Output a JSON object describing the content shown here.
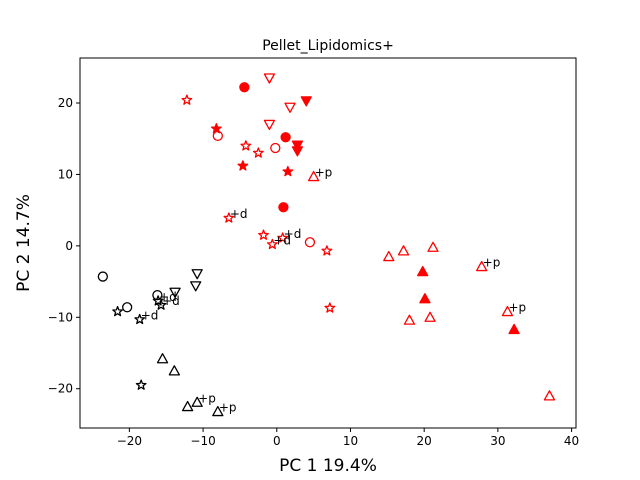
{
  "chart_data": {
    "type": "scatter",
    "title": "Pellet_Lipidomics+",
    "xlabel": "PC 1 19.4%",
    "ylabel": "PC 2 14.7%",
    "xlim": [
      -26.7,
      40.6
    ],
    "ylim": [
      -25.5,
      26.3
    ],
    "xticks": [
      -20,
      -10,
      0,
      10,
      20,
      30,
      40
    ],
    "yticks": [
      -20,
      -10,
      0,
      10,
      20
    ],
    "grid": false,
    "colors": {
      "red": "#ff0000",
      "black": "#000000"
    },
    "points": [
      {
        "x": -4.4,
        "y": 22.2,
        "marker": "circle",
        "fill": true,
        "color": "red"
      },
      {
        "x": 1.2,
        "y": 15.2,
        "marker": "circle",
        "fill": true,
        "color": "red"
      },
      {
        "x": 0.9,
        "y": 5.4,
        "marker": "circle",
        "fill": true,
        "color": "red"
      },
      {
        "x": -8.0,
        "y": 15.4,
        "marker": "circle",
        "fill": false,
        "color": "red"
      },
      {
        "x": -0.2,
        "y": 13.7,
        "marker": "circle",
        "fill": false,
        "color": "red"
      },
      {
        "x": 4.5,
        "y": 0.5,
        "marker": "circle",
        "fill": false,
        "color": "red"
      },
      {
        "x": -1.0,
        "y": 23.5,
        "marker": "triangle-down",
        "fill": false,
        "color": "red"
      },
      {
        "x": 1.8,
        "y": 19.4,
        "marker": "triangle-down",
        "fill": false,
        "color": "red"
      },
      {
        "x": -1.0,
        "y": 17.0,
        "marker": "triangle-down",
        "fill": false,
        "color": "red"
      },
      {
        "x": 4.0,
        "y": 20.3,
        "marker": "triangle-down",
        "fill": true,
        "color": "red"
      },
      {
        "x": 2.8,
        "y": 14.1,
        "marker": "triangle-down",
        "fill": true,
        "color": "red"
      },
      {
        "x": 2.8,
        "y": 13.3,
        "marker": "triangle-down",
        "fill": true,
        "color": "red"
      },
      {
        "x": -12.2,
        "y": 20.4,
        "marker": "star",
        "fill": false,
        "color": "red"
      },
      {
        "x": -8.2,
        "y": 16.4,
        "marker": "star",
        "fill": true,
        "color": "red"
      },
      {
        "x": -4.2,
        "y": 14.0,
        "marker": "star",
        "fill": false,
        "color": "red"
      },
      {
        "x": -2.5,
        "y": 13.0,
        "marker": "star",
        "fill": false,
        "color": "red"
      },
      {
        "x": -4.6,
        "y": 11.2,
        "marker": "star",
        "fill": true,
        "color": "red"
      },
      {
        "x": 1.5,
        "y": 10.4,
        "marker": "star",
        "fill": true,
        "color": "red"
      },
      {
        "x": -6.5,
        "y": 3.9,
        "marker": "star",
        "fill": false,
        "color": "red",
        "label": "+d"
      },
      {
        "x": -1.8,
        "y": 1.5,
        "marker": "star",
        "fill": false,
        "color": "red"
      },
      {
        "x": 0.8,
        "y": 1.1,
        "marker": "star",
        "fill": false,
        "color": "red",
        "label": "+d"
      },
      {
        "x": -0.6,
        "y": 0.2,
        "marker": "star",
        "fill": false,
        "color": "red",
        "label": "+d"
      },
      {
        "x": 6.8,
        "y": -0.7,
        "marker": "star",
        "fill": false,
        "color": "red"
      },
      {
        "x": 7.2,
        "y": -8.7,
        "marker": "star",
        "fill": false,
        "color": "red"
      },
      {
        "x": 5.0,
        "y": 9.7,
        "marker": "triangle-up",
        "fill": false,
        "color": "red",
        "label": "+p"
      },
      {
        "x": 15.2,
        "y": -1.5,
        "marker": "triangle-up",
        "fill": false,
        "color": "red"
      },
      {
        "x": 17.2,
        "y": -0.7,
        "marker": "triangle-up",
        "fill": false,
        "color": "red"
      },
      {
        "x": 21.2,
        "y": -0.2,
        "marker": "triangle-up",
        "fill": false,
        "color": "red"
      },
      {
        "x": 18.0,
        "y": -10.4,
        "marker": "triangle-up",
        "fill": false,
        "color": "red"
      },
      {
        "x": 20.8,
        "y": -10.0,
        "marker": "triangle-up",
        "fill": false,
        "color": "red"
      },
      {
        "x": 27.8,
        "y": -2.9,
        "marker": "triangle-up",
        "fill": false,
        "color": "red",
        "label": "+p"
      },
      {
        "x": 31.3,
        "y": -9.2,
        "marker": "triangle-up",
        "fill": false,
        "color": "red",
        "label": "+p"
      },
      {
        "x": 37.0,
        "y": -21.0,
        "marker": "triangle-up",
        "fill": false,
        "color": "red"
      },
      {
        "x": 19.8,
        "y": -3.6,
        "marker": "triangle-up",
        "fill": true,
        "color": "red"
      },
      {
        "x": 20.1,
        "y": -7.4,
        "marker": "triangle-up",
        "fill": true,
        "color": "red"
      },
      {
        "x": 32.2,
        "y": -11.7,
        "marker": "triangle-up",
        "fill": true,
        "color": "red"
      },
      {
        "x": -23.6,
        "y": -4.3,
        "marker": "circle",
        "fill": false,
        "color": "black"
      },
      {
        "x": -20.3,
        "y": -8.6,
        "marker": "circle",
        "fill": false,
        "color": "black"
      },
      {
        "x": -16.2,
        "y": -6.9,
        "marker": "circle",
        "fill": false,
        "color": "black"
      },
      {
        "x": -10.8,
        "y": -3.9,
        "marker": "triangle-down",
        "fill": false,
        "color": "black"
      },
      {
        "x": -11.0,
        "y": -5.6,
        "marker": "triangle-down",
        "fill": false,
        "color": "black"
      },
      {
        "x": -13.8,
        "y": -6.5,
        "marker": "triangle-down",
        "fill": false,
        "color": "black"
      },
      {
        "x": -21.6,
        "y": -9.2,
        "marker": "star",
        "fill": false,
        "color": "black"
      },
      {
        "x": -18.6,
        "y": -10.3,
        "marker": "star",
        "fill": false,
        "color": "black",
        "label": "+d"
      },
      {
        "x": -16.1,
        "y": -7.7,
        "marker": "star",
        "fill": false,
        "color": "black",
        "label": "+d"
      },
      {
        "x": -15.7,
        "y": -8.3,
        "marker": "star",
        "fill": false,
        "color": "black",
        "label": "+d"
      },
      {
        "x": -18.4,
        "y": -19.5,
        "marker": "star",
        "fill": false,
        "color": "black"
      },
      {
        "x": -15.5,
        "y": -15.8,
        "marker": "triangle-up",
        "fill": false,
        "color": "black"
      },
      {
        "x": -13.9,
        "y": -17.5,
        "marker": "triangle-up",
        "fill": false,
        "color": "black"
      },
      {
        "x": -12.1,
        "y": -22.5,
        "marker": "triangle-up",
        "fill": false,
        "color": "black"
      },
      {
        "x": -10.8,
        "y": -21.9,
        "marker": "triangle-up",
        "fill": false,
        "color": "black",
        "label": "+p"
      },
      {
        "x": -8.0,
        "y": -23.2,
        "marker": "triangle-up",
        "fill": false,
        "color": "black",
        "label": "+p"
      }
    ]
  }
}
